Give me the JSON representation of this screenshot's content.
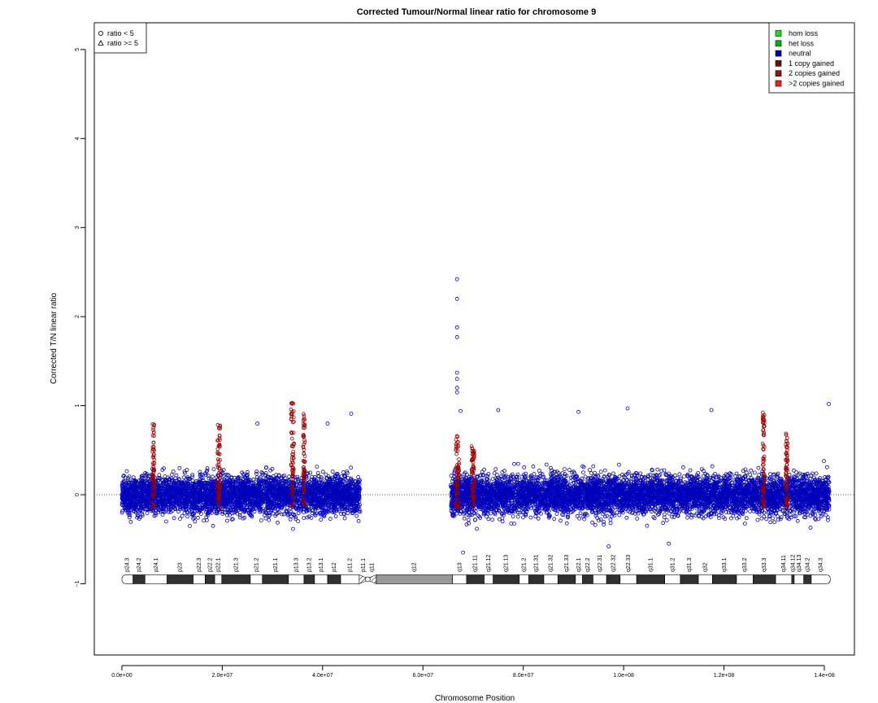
{
  "chart_data": {
    "type": "scatter",
    "title": "Corrected Tumour/Normal linear ratio for chromosome  9",
    "xlabel": "Chromosome Position",
    "ylabel": "Corrected T/N linear ratio",
    "xlim": [
      -5500000,
      146000000
    ],
    "ylim": [
      -1.8,
      5.3
    ],
    "x_ticks": [
      {
        "value": 0,
        "label": "0.0e+00"
      },
      {
        "value": 20000000,
        "label": "2.0e+07"
      },
      {
        "value": 40000000,
        "label": "4.0e+07"
      },
      {
        "value": 60000000,
        "label": "6.0e+07"
      },
      {
        "value": 80000000,
        "label": "8.0e+07"
      },
      {
        "value": 100000000,
        "label": "1.0e+08"
      },
      {
        "value": 120000000,
        "label": "1.2e+08"
      },
      {
        "value": 140000000,
        "label": "1.4e+08"
      }
    ],
    "y_ticks": [
      {
        "value": -1,
        "label": "−1"
      },
      {
        "value": 0,
        "label": "0"
      },
      {
        "value": 1,
        "label": "1"
      },
      {
        "value": 2,
        "label": "2"
      },
      {
        "value": 3,
        "label": "3"
      },
      {
        "value": 4,
        "label": "4"
      },
      {
        "value": 5,
        "label": "5"
      }
    ],
    "reference_line": {
      "y": 0,
      "style": "dotted"
    },
    "grid": false,
    "shape_legend": {
      "position": "top-left",
      "items": [
        {
          "label": "ratio < 5",
          "shape": "circle"
        },
        {
          "label": "ratio >= 5",
          "shape": "triangle"
        }
      ]
    },
    "color_legend": {
      "position": "top-right",
      "items": [
        {
          "label": "hom loss",
          "color": "#22dd22"
        },
        {
          "label": "het loss",
          "color": "#11aa11"
        },
        {
          "label": "neutral",
          "color": "#0000aa"
        },
        {
          "label": "1 copy gained",
          "color": "#661111"
        },
        {
          "label": "2 copies gained",
          "color": "#991111"
        },
        {
          "label": ">2 copies gained",
          "color": "#ee2222"
        }
      ]
    },
    "series": [
      {
        "name": "neutral",
        "color": "#0000bb",
        "segments": [
          {
            "x_range": [
              0,
              47500000
            ],
            "y_center": 0.0,
            "y_spread": 0.22
          },
          {
            "x_range": [
              65500000,
              141000000
            ],
            "y_center": 0.0,
            "y_spread": 0.22
          }
        ],
        "outliers": [
          {
            "x": 66800000,
            "y": 2.42
          },
          {
            "x": 66800000,
            "y": 2.2
          },
          {
            "x": 66800000,
            "y": 1.88
          },
          {
            "x": 66800000,
            "y": 1.77
          },
          {
            "x": 66800000,
            "y": 1.37
          },
          {
            "x": 66800000,
            "y": 1.3
          },
          {
            "x": 66800000,
            "y": 1.2
          },
          {
            "x": 66800000,
            "y": 1.15
          },
          {
            "x": 67500000,
            "y": 0.94
          },
          {
            "x": 75000000,
            "y": 0.95
          },
          {
            "x": 91000000,
            "y": 0.93
          },
          {
            "x": 100800000,
            "y": 0.97
          },
          {
            "x": 117500000,
            "y": 0.95
          },
          {
            "x": 140900000,
            "y": 1.02
          },
          {
            "x": 45700000,
            "y": 0.91
          },
          {
            "x": 27000000,
            "y": 0.8
          },
          {
            "x": 41000000,
            "y": 0.8
          },
          {
            "x": 68000000,
            "y": -0.65
          },
          {
            "x": 97000000,
            "y": -0.58
          },
          {
            "x": 109000000,
            "y": -0.55
          }
        ]
      },
      {
        "name": "1 copy gained",
        "color": "#990000",
        "segments": [
          {
            "x_range": [
              6100000,
              6500000
            ],
            "y_max": 0.82
          },
          {
            "x_range": [
              19000000,
              19600000
            ],
            "y_max": 0.88
          },
          {
            "x_range": [
              33700000,
              34300000
            ],
            "y_max": 1.04
          },
          {
            "x_range": [
              36100000,
              36500000
            ],
            "y_max": 0.92
          },
          {
            "x_range": [
              66500000,
              67200000
            ],
            "y_max": 0.66
          },
          {
            "x_range": [
              69700000,
              70300000
            ],
            "y_max": 0.55
          },
          {
            "x_range": [
              127700000,
              128100000
            ],
            "y_max": 0.93
          },
          {
            "x_range": [
              132300000,
              132700000
            ],
            "y_max": 0.72
          }
        ]
      }
    ],
    "ideogram": {
      "y": -0.95,
      "bands": [
        {
          "name": "p24.3",
          "start": 0,
          "end": 2200000,
          "stain": "gneg"
        },
        {
          "name": "p24.2",
          "start": 2200000,
          "end": 4600000,
          "stain": "gpos"
        },
        {
          "name": "p24.1",
          "start": 4600000,
          "end": 9000000,
          "stain": "gneg"
        },
        {
          "name": "p23",
          "start": 9000000,
          "end": 14200000,
          "stain": "gpos"
        },
        {
          "name": "p22.3",
          "start": 14200000,
          "end": 16600000,
          "stain": "gneg"
        },
        {
          "name": "p22.2",
          "start": 16600000,
          "end": 18500000,
          "stain": "gpos"
        },
        {
          "name": "p22.1",
          "start": 18500000,
          "end": 19900000,
          "stain": "gneg"
        },
        {
          "name": "p21.3",
          "start": 19900000,
          "end": 25600000,
          "stain": "gpos"
        },
        {
          "name": "p21.2",
          "start": 25600000,
          "end": 28000000,
          "stain": "gneg"
        },
        {
          "name": "p21.1",
          "start": 28000000,
          "end": 33200000,
          "stain": "gpos"
        },
        {
          "name": "p13.3",
          "start": 33200000,
          "end": 36300000,
          "stain": "gneg"
        },
        {
          "name": "p13.2",
          "start": 36300000,
          "end": 38400000,
          "stain": "gpos"
        },
        {
          "name": "p13.1",
          "start": 38400000,
          "end": 41000000,
          "stain": "gneg"
        },
        {
          "name": "p12",
          "start": 41000000,
          "end": 43600000,
          "stain": "gpos"
        },
        {
          "name": "p11.2",
          "start": 43600000,
          "end": 47300000,
          "stain": "gneg"
        },
        {
          "name": "p11.1",
          "start": 47300000,
          "end": 49000000,
          "stain": "acen"
        },
        {
          "name": "q11",
          "start": 49000000,
          "end": 50700000,
          "stain": "acen"
        },
        {
          "name": "q12",
          "start": 50700000,
          "end": 65900000,
          "stain": "gvar"
        },
        {
          "name": "q13",
          "start": 65900000,
          "end": 68700000,
          "stain": "gneg"
        },
        {
          "name": "q21.11",
          "start": 68700000,
          "end": 72200000,
          "stain": "gpos"
        },
        {
          "name": "q21.12",
          "start": 72200000,
          "end": 74000000,
          "stain": "gneg"
        },
        {
          "name": "q21.13",
          "start": 74000000,
          "end": 79200000,
          "stain": "gpos"
        },
        {
          "name": "q21.2",
          "start": 79200000,
          "end": 81100000,
          "stain": "gneg"
        },
        {
          "name": "q21.31",
          "start": 81100000,
          "end": 84100000,
          "stain": "gpos"
        },
        {
          "name": "q21.32",
          "start": 84100000,
          "end": 86900000,
          "stain": "gneg"
        },
        {
          "name": "q21.33",
          "start": 86900000,
          "end": 90400000,
          "stain": "gpos"
        },
        {
          "name": "q22.1",
          "start": 90400000,
          "end": 91800000,
          "stain": "gneg"
        },
        {
          "name": "q22.2",
          "start": 91800000,
          "end": 93900000,
          "stain": "gpos"
        },
        {
          "name": "q22.31",
          "start": 93900000,
          "end": 96600000,
          "stain": "gneg"
        },
        {
          "name": "q22.32",
          "start": 96600000,
          "end": 99300000,
          "stain": "gpos"
        },
        {
          "name": "q22.33",
          "start": 99300000,
          "end": 102600000,
          "stain": "gneg"
        },
        {
          "name": "q31.1",
          "start": 102600000,
          "end": 108200000,
          "stain": "gpos"
        },
        {
          "name": "q31.2",
          "start": 108200000,
          "end": 111300000,
          "stain": "gneg"
        },
        {
          "name": "q31.3",
          "start": 111300000,
          "end": 114900000,
          "stain": "gpos"
        },
        {
          "name": "q32",
          "start": 114900000,
          "end": 117700000,
          "stain": "gneg"
        },
        {
          "name": "q33.1",
          "start": 117700000,
          "end": 122500000,
          "stain": "gpos"
        },
        {
          "name": "q33.2",
          "start": 122500000,
          "end": 125800000,
          "stain": "gneg"
        },
        {
          "name": "q33.3",
          "start": 125800000,
          "end": 130300000,
          "stain": "gpos"
        },
        {
          "name": "q34.11",
          "start": 130300000,
          "end": 133500000,
          "stain": "gneg"
        },
        {
          "name": "q34.12",
          "start": 133500000,
          "end": 134000000,
          "stain": "gpos"
        },
        {
          "name": "q34.13",
          "start": 134000000,
          "end": 135900000,
          "stain": "gneg"
        },
        {
          "name": "q34.2",
          "start": 135900000,
          "end": 137400000,
          "stain": "gpos"
        },
        {
          "name": "q34.3",
          "start": 137400000,
          "end": 141200000,
          "stain": "gneg"
        }
      ]
    }
  }
}
